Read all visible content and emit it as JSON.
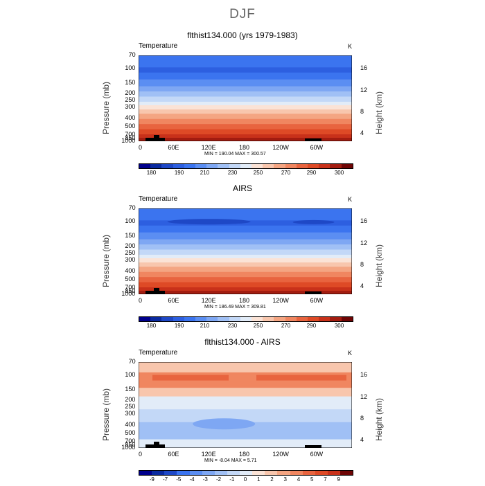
{
  "title": "DJF",
  "panels": [
    {
      "title": "flthist134.000 (yrs 1979-1983)",
      "variable": "Temperature",
      "units": "K",
      "stats": "MIN = 190.04   MAX = 300.57",
      "kind": "temp"
    },
    {
      "title": "AIRS",
      "variable": "Temperature",
      "units": "K",
      "stats": "MIN = 186.49   MAX = 309.81",
      "kind": "temp"
    },
    {
      "title": "flthist134.000 - AIRS",
      "variable": "Temperature",
      "units": "K",
      "stats": "MIN =   -8.04   MAX =    5.71",
      "kind": "diff"
    }
  ],
  "axes": {
    "ylabel_left": "Pressure (mb)",
    "ylabel_right": "Height (km)",
    "pressure_ticks": [
      "70",
      "100",
      "150",
      "200",
      "250",
      "300",
      "400",
      "500",
      "700",
      "850",
      "1000"
    ],
    "height_ticks": [
      "16",
      "12",
      "8",
      "4"
    ],
    "lon_ticks": [
      "0",
      "60E",
      "120E",
      "180",
      "120W",
      "60W"
    ]
  },
  "chart_data": [
    {
      "type": "heatmap",
      "title": "flthist134.000 (yrs 1979-1983)",
      "variable": "Temperature",
      "units": "K",
      "x_ticks": [
        "0",
        "60E",
        "120E",
        "180",
        "120W",
        "60W"
      ],
      "y_ticks_pressure_mb": [
        70,
        100,
        150,
        200,
        250,
        300,
        400,
        500,
        700,
        850,
        1000
      ],
      "y_ticks_height_km": [
        16,
        12,
        8,
        4
      ],
      "min": 190.04,
      "max": 300.57,
      "profile_pressure_mb": [
        70,
        100,
        150,
        200,
        250,
        300,
        400,
        500,
        700,
        850,
        1000
      ],
      "profile_temperature_K": [
        205,
        203,
        213,
        220,
        228,
        237,
        253,
        265,
        280,
        289,
        296
      ],
      "colorbar_levels": [
        180,
        190,
        210,
        230,
        250,
        270,
        290,
        300
      ]
    },
    {
      "type": "heatmap",
      "title": "AIRS",
      "variable": "Temperature",
      "units": "K",
      "x_ticks": [
        "0",
        "60E",
        "120E",
        "180",
        "120W",
        "60W"
      ],
      "y_ticks_pressure_mb": [
        70,
        100,
        150,
        200,
        250,
        300,
        400,
        500,
        700,
        850,
        1000
      ],
      "y_ticks_height_km": [
        16,
        12,
        8,
        4
      ],
      "min": 186.49,
      "max": 309.81,
      "profile_pressure_mb": [
        70,
        100,
        150,
        200,
        250,
        300,
        400,
        500,
        700,
        850,
        1000
      ],
      "profile_temperature_K": [
        204,
        197,
        211,
        219,
        227,
        236,
        252,
        264,
        280,
        290,
        298
      ],
      "colorbar_levels": [
        180,
        190,
        210,
        230,
        250,
        270,
        290,
        300
      ]
    },
    {
      "type": "heatmap",
      "title": "flthist134.000 - AIRS",
      "variable": "Temperature",
      "units": "K",
      "x_ticks": [
        "0",
        "60E",
        "120E",
        "180",
        "120W",
        "60W"
      ],
      "y_ticks_pressure_mb": [
        70,
        100,
        150,
        200,
        250,
        300,
        400,
        500,
        700,
        850,
        1000
      ],
      "y_ticks_height_km": [
        16,
        12,
        8,
        4
      ],
      "min": -8.04,
      "max": 5.71,
      "profile_pressure_mb": [
        70,
        100,
        150,
        200,
        250,
        300,
        400,
        500,
        700,
        850,
        1000
      ],
      "profile_difference_K": [
        2,
        5,
        3,
        1,
        -1,
        -1,
        -2,
        -1.5,
        -1,
        -0.5,
        0
      ],
      "colorbar_levels": [
        -9,
        -7,
        -5,
        -4,
        -3,
        -2,
        -1,
        0,
        1,
        2,
        3,
        4,
        5,
        7,
        9
      ]
    }
  ],
  "colorbars": {
    "temp": {
      "labels": [
        "180",
        "190",
        "210",
        "230",
        "250",
        "270",
        "290",
        "300"
      ],
      "colors": [
        "#00008b",
        "#0a2a9f",
        "#1e48c6",
        "#2d5fe0",
        "#3b74ef",
        "#5b8ef2",
        "#7ea7f3",
        "#a0c0f5",
        "#c3d8f7",
        "#e2ecf8",
        "#fbe3d6",
        "#f8c6ad",
        "#f4a582",
        "#f08660",
        "#e8643f",
        "#de4a26",
        "#c8311a",
        "#a21c10",
        "#6e0505"
      ]
    },
    "diff": {
      "labels": [
        "-9",
        "-7",
        "-5",
        "-4",
        "-3",
        "-2",
        "-1",
        "0",
        "1",
        "2",
        "3",
        "4",
        "5",
        "7",
        "9"
      ],
      "colors": [
        "#00008b",
        "#0a2a9f",
        "#1e48c6",
        "#3b74ef",
        "#5b8ef2",
        "#7ea7f3",
        "#a0c0f5",
        "#c3d8f7",
        "#e2ecf8",
        "#fbe3d6",
        "#f8c6ad",
        "#f4a582",
        "#f08660",
        "#e8643f",
        "#de4a26",
        "#c8311a",
        "#6e0505"
      ]
    }
  }
}
